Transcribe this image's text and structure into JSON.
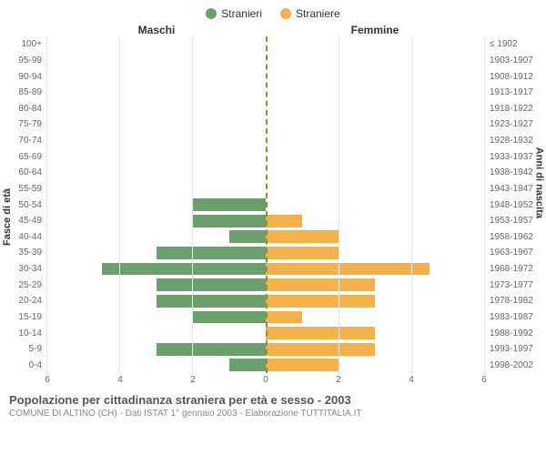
{
  "chart": {
    "type": "population-pyramid",
    "legend": [
      {
        "label": "Stranieri",
        "color": "#6b9f6b"
      },
      {
        "label": "Straniere",
        "color": "#f3b24a"
      }
    ],
    "column_headers": {
      "left": "Maschi",
      "right": "Femmine"
    },
    "y_title_left": "Fasce di età",
    "y_title_right": "Anni di nascita",
    "x_range": 6,
    "x_ticks": [
      6,
      4,
      2,
      0,
      2,
      4,
      6
    ],
    "grid_color": "#e6e6e6",
    "center_line_color": "#9a8a3a",
    "background_color": "#ffffff",
    "bar_colors": {
      "male": "#6b9f6b",
      "female": "#f3b24a"
    },
    "label_fontsize": 10,
    "rows": [
      {
        "age": "100+",
        "birth": "≤ 1902",
        "m": 0,
        "f": 0
      },
      {
        "age": "95-99",
        "birth": "1903-1907",
        "m": 0,
        "f": 0
      },
      {
        "age": "90-94",
        "birth": "1908-1912",
        "m": 0,
        "f": 0
      },
      {
        "age": "85-89",
        "birth": "1913-1917",
        "m": 0,
        "f": 0
      },
      {
        "age": "80-84",
        "birth": "1918-1922",
        "m": 0,
        "f": 0
      },
      {
        "age": "75-79",
        "birth": "1923-1927",
        "m": 0,
        "f": 0
      },
      {
        "age": "70-74",
        "birth": "1928-1932",
        "m": 0,
        "f": 0
      },
      {
        "age": "65-69",
        "birth": "1933-1937",
        "m": 0,
        "f": 0
      },
      {
        "age": "60-64",
        "birth": "1938-1942",
        "m": 0,
        "f": 0
      },
      {
        "age": "55-59",
        "birth": "1943-1947",
        "m": 0,
        "f": 0
      },
      {
        "age": "50-54",
        "birth": "1948-1952",
        "m": 2,
        "f": 0
      },
      {
        "age": "45-49",
        "birth": "1953-1957",
        "m": 2,
        "f": 1
      },
      {
        "age": "40-44",
        "birth": "1958-1962",
        "m": 1,
        "f": 2
      },
      {
        "age": "35-39",
        "birth": "1963-1967",
        "m": 3,
        "f": 2
      },
      {
        "age": "30-34",
        "birth": "1968-1972",
        "m": 4.5,
        "f": 4.5
      },
      {
        "age": "25-29",
        "birth": "1973-1977",
        "m": 3,
        "f": 3
      },
      {
        "age": "20-24",
        "birth": "1978-1982",
        "m": 3,
        "f": 3
      },
      {
        "age": "15-19",
        "birth": "1983-1987",
        "m": 2,
        "f": 1
      },
      {
        "age": "10-14",
        "birth": "1988-1992",
        "m": 0,
        "f": 3
      },
      {
        "age": "5-9",
        "birth": "1993-1997",
        "m": 3,
        "f": 3
      },
      {
        "age": "0-4",
        "birth": "1998-2002",
        "m": 1,
        "f": 2
      }
    ]
  },
  "footer": {
    "title": "Popolazione per cittadinanza straniera per età e sesso - 2003",
    "subtitle": "COMUNE DI ALTINO (CH) - Dati ISTAT 1° gennaio 2003 - Elaborazione TUTTITALIA.IT"
  }
}
